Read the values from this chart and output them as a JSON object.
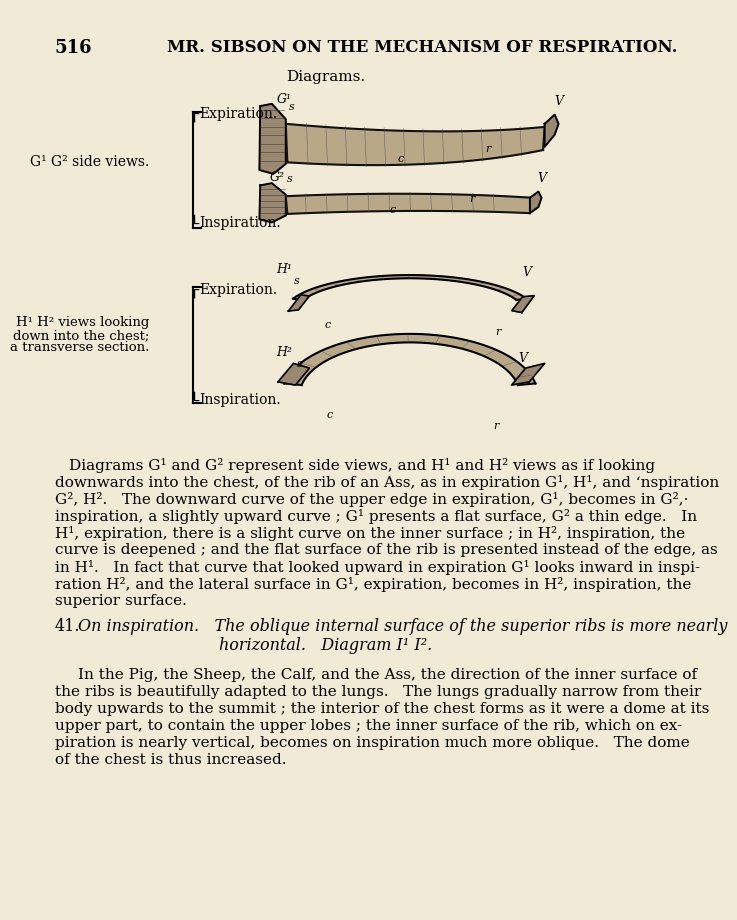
{
  "bg_color": "#f0ead6",
  "page_number": "516",
  "header": "MR. SIBSON ON THE MECHANISM OF RESPIRATION.",
  "diagrams_label": "Diagrams.",
  "expiration_label_g": "Expiration.",
  "inspiration_label_g": "Inspiration.",
  "expiration_label_h": "Expiration.",
  "inspiration_label_h": "Inspiration.",
  "g1g2_label": "G¹ G² side views.",
  "h1h2_line1": "H¹ H² views looking",
  "h1h2_line2": "down into the chest;",
  "h1h2_line3": "a transverse section.",
  "lines1": [
    "Diagrams G¹ and G² represent side views, and H¹ and H² views as if looking",
    "downwards into the chest, of the rib of an Ass, as in expiration G¹, H¹, and ʻnspiration",
    "G², H².   The downward curve of the upper edge in expiration, G¹, becomes in G²,·",
    "inspiration, a slightly upward curve ; G¹ presents a flat surface, G² a thin edge.   In",
    "H¹, expiration, there is a slight curve on the inner surface ; in H², inspiration, the",
    "curve is deepened ; and the flat surface of the rib is presented instead of the edge, as",
    "in H¹.   In fact that curve that looked upward in expiration G¹ looks inward in inspi-",
    "ration H², and the lateral surface in G¹, expiration, becomes in H², inspiration, the",
    "superior surface."
  ],
  "section_num": "41.",
  "section_line1": "On inspiration.   The oblique internal surface of the superior ribs is more nearly",
  "section_line2": "horizontal.   Diagram I¹ I².",
  "lines2": [
    "In the Pig, the Sheep, the Calf, and the Ass, the direction of the inner surface of",
    "the ribs is beautifully adapted to the lungs.   The lungs gradually narrow from their",
    "body upwards to the summit ; the interior of the chest forms as it were a dome at its",
    "upper part, to contain the upper lobes ; the inner surface of the rib, which on ex-",
    "piration is nearly vertical, becomes on inspiration much more oblique.   The dome",
    "of the chest is thus increased."
  ]
}
